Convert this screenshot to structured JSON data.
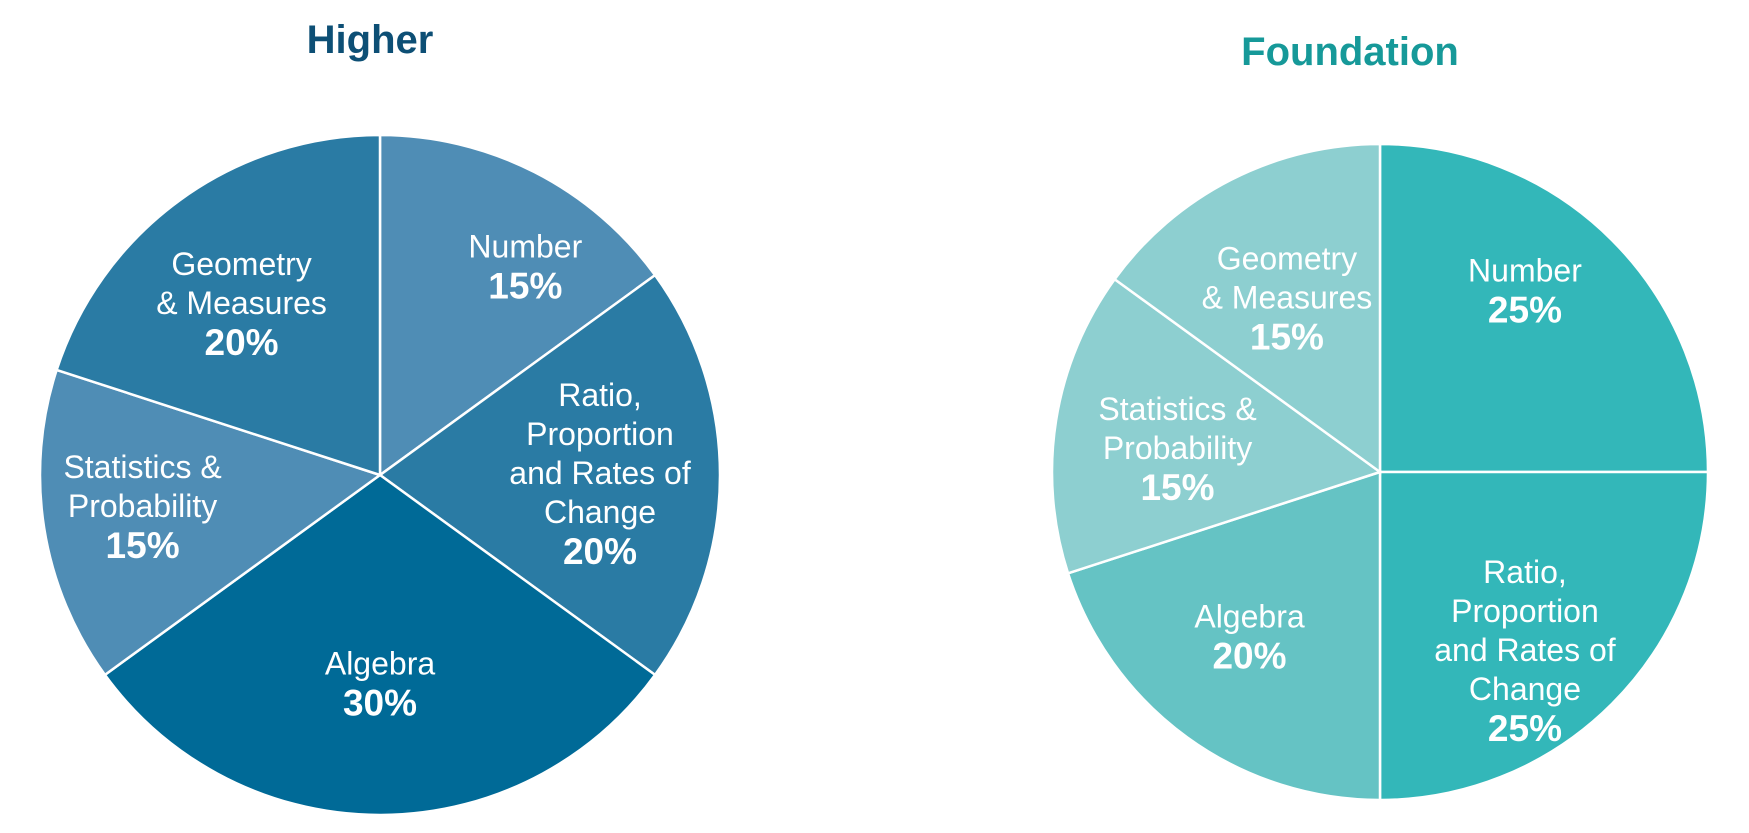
{
  "colors": {
    "higher_title": "#0d4f75",
    "foundation_title": "#169999",
    "slice_border": "#ffffff"
  },
  "chart_data": [
    {
      "type": "pie",
      "title": "Higher",
      "slices": [
        {
          "label_lines": [
            "Number"
          ],
          "value": 15,
          "value_label": "15%",
          "color": "#4f8db5"
        },
        {
          "label_lines": [
            "Ratio,",
            "Proportion",
            "and Rates of",
            "Change"
          ],
          "value": 20,
          "value_label": "20%",
          "color": "#2a7ba4"
        },
        {
          "label_lines": [
            "Algebra"
          ],
          "value": 30,
          "value_label": "30%",
          "color": "#006a97"
        },
        {
          "label_lines": [
            "Statistics &",
            "Probability"
          ],
          "value": 15,
          "value_label": "15%",
          "color": "#4f8db5"
        },
        {
          "label_lines": [
            "Geometry",
            "& Measures"
          ],
          "value": 20,
          "value_label": "20%",
          "color": "#2a7ba4"
        }
      ]
    },
    {
      "type": "pie",
      "title": "Foundation",
      "slices": [
        {
          "label_lines": [
            "Number"
          ],
          "value": 25,
          "value_label": "25%",
          "color": "#33b7b9"
        },
        {
          "label_lines": [
            "Ratio,",
            "Proportion",
            "and Rates of",
            "Change"
          ],
          "value": 25,
          "value_label": "25%",
          "color": "#33b7b9"
        },
        {
          "label_lines": [
            "Algebra"
          ],
          "value": 20,
          "value_label": "20%",
          "color": "#65c3c4"
        },
        {
          "label_lines": [
            "Statistics &",
            "Probability"
          ],
          "value": 15,
          "value_label": "15%",
          "color": "#8dcfd0"
        },
        {
          "label_lines": [
            "Geometry",
            "& Measures"
          ],
          "value": 15,
          "value_label": "15%",
          "color": "#8dcfd0"
        }
      ]
    }
  ]
}
